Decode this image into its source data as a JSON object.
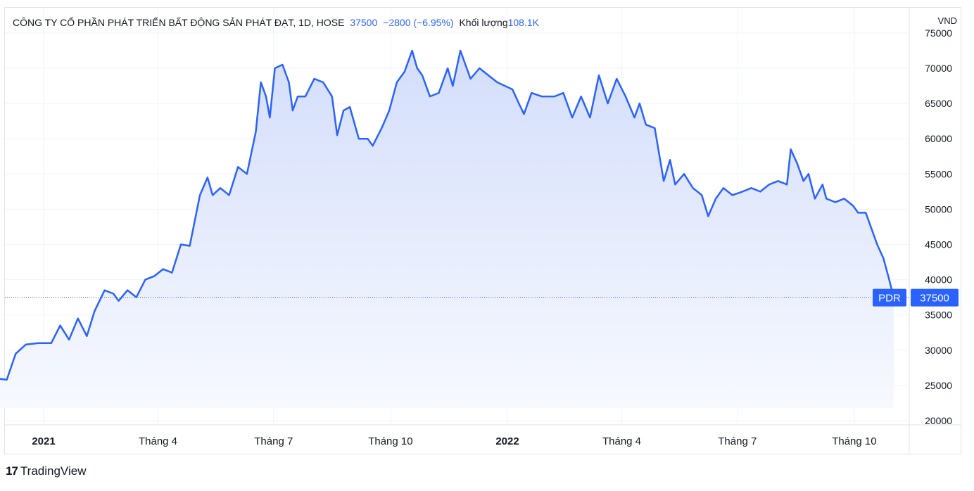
{
  "header": {
    "title": "CÔNG TY CỔ PHẦN PHÁT TRIỂN BẤT ĐỘNG SẢN PHÁT ĐẠT, 1D, HOSE",
    "last_price": "37500",
    "change": "−2800 (−6.95%)",
    "volume_label": "Khối lượng",
    "volume_value": "108.1K",
    "currency": "VND"
  },
  "brand": {
    "logo": "17",
    "name": "TradingView"
  },
  "colors": {
    "line": "#2962ff",
    "fill_top": "#d4defb",
    "fill_bottom": "#f7f9fe",
    "grid": "#f0f3fa",
    "label_bg": "#2962ff"
  },
  "chart_data": {
    "type": "area",
    "symbol": "PDR",
    "last_value": 37500,
    "last_value_label": "37500",
    "ylim": [
      20000,
      75000
    ],
    "y_ticks": [
      20000,
      25000,
      30000,
      35000,
      40000,
      45000,
      50000,
      55000,
      60000,
      65000,
      70000,
      75000
    ],
    "y_tick_labels": [
      "20000",
      "25000",
      "30000",
      "35000",
      "40000",
      "45000",
      "50000",
      "55000",
      "60000",
      "65000",
      "70000",
      "75000"
    ],
    "x_ticks": [
      {
        "label": "2021",
        "date": "2021-01-01",
        "bold": true
      },
      {
        "label": "Tháng 4",
        "date": "2021-04-01",
        "bold": false
      },
      {
        "label": "Tháng 7",
        "date": "2021-07-01",
        "bold": false
      },
      {
        "label": "Tháng 10",
        "date": "2021-10-01",
        "bold": false
      },
      {
        "label": "2022",
        "date": "2022-01-01",
        "bold": true
      },
      {
        "label": "Tháng 4",
        "date": "2022-04-01",
        "bold": false
      },
      {
        "label": "Tháng 7",
        "date": "2022-07-01",
        "bold": false
      },
      {
        "label": "Tháng 10",
        "date": "2022-10-01",
        "bold": false
      }
    ],
    "grid": true,
    "series": [
      {
        "points": [
          [
            "2020-11-25",
            26000
          ],
          [
            "2020-12-03",
            25800
          ],
          [
            "2020-12-10",
            29500
          ],
          [
            "2020-12-18",
            30800
          ],
          [
            "2020-12-28",
            31000
          ],
          [
            "2021-01-07",
            31000
          ],
          [
            "2021-01-14",
            33500
          ],
          [
            "2021-01-21",
            31500
          ],
          [
            "2021-01-28",
            34500
          ],
          [
            "2021-02-04",
            32000
          ],
          [
            "2021-02-10",
            35500
          ],
          [
            "2021-02-18",
            38500
          ],
          [
            "2021-02-25",
            38000
          ],
          [
            "2021-03-01",
            37000
          ],
          [
            "2021-03-08",
            38500
          ],
          [
            "2021-03-15",
            37500
          ],
          [
            "2021-03-22",
            40000
          ],
          [
            "2021-03-29",
            40500
          ],
          [
            "2021-04-05",
            41500
          ],
          [
            "2021-04-12",
            41000
          ],
          [
            "2021-04-19",
            45000
          ],
          [
            "2021-04-26",
            44800
          ],
          [
            "2021-05-04",
            52000
          ],
          [
            "2021-05-10",
            54500
          ],
          [
            "2021-05-14",
            52000
          ],
          [
            "2021-05-20",
            53000
          ],
          [
            "2021-05-27",
            52000
          ],
          [
            "2021-06-03",
            56000
          ],
          [
            "2021-06-10",
            55000
          ],
          [
            "2021-06-17",
            61000
          ],
          [
            "2021-06-21",
            68000
          ],
          [
            "2021-06-25",
            66000
          ],
          [
            "2021-06-28",
            63000
          ],
          [
            "2021-07-02",
            70000
          ],
          [
            "2021-07-08",
            70500
          ],
          [
            "2021-07-13",
            68000
          ],
          [
            "2021-07-16",
            64000
          ],
          [
            "2021-07-20",
            66000
          ],
          [
            "2021-07-26",
            66000
          ],
          [
            "2021-08-02",
            68500
          ],
          [
            "2021-08-09",
            68000
          ],
          [
            "2021-08-16",
            66000
          ],
          [
            "2021-08-20",
            60500
          ],
          [
            "2021-08-25",
            64000
          ],
          [
            "2021-08-30",
            64500
          ],
          [
            "2021-09-06",
            60000
          ],
          [
            "2021-09-13",
            60000
          ],
          [
            "2021-09-17",
            59000
          ],
          [
            "2021-09-24",
            61500
          ],
          [
            "2021-09-30",
            64000
          ],
          [
            "2021-10-06",
            68000
          ],
          [
            "2021-10-12",
            69500
          ],
          [
            "2021-10-18",
            72500
          ],
          [
            "2021-10-22",
            70000
          ],
          [
            "2021-10-26",
            69000
          ],
          [
            "2021-11-01",
            66000
          ],
          [
            "2021-11-08",
            66500
          ],
          [
            "2021-11-15",
            70000
          ],
          [
            "2021-11-19",
            67500
          ],
          [
            "2021-11-25",
            72500
          ],
          [
            "2021-12-03",
            68500
          ],
          [
            "2021-12-10",
            70000
          ],
          [
            "2021-12-17",
            69000
          ],
          [
            "2021-12-24",
            68000
          ],
          [
            "2022-01-05",
            67000
          ],
          [
            "2022-01-10",
            65000
          ],
          [
            "2022-01-14",
            63500
          ],
          [
            "2022-01-20",
            66500
          ],
          [
            "2022-01-28",
            66000
          ],
          [
            "2022-02-07",
            66000
          ],
          [
            "2022-02-14",
            66500
          ],
          [
            "2022-02-21",
            63000
          ],
          [
            "2022-02-28",
            66000
          ],
          [
            "2022-03-07",
            63000
          ],
          [
            "2022-03-14",
            69000
          ],
          [
            "2022-03-21",
            65000
          ],
          [
            "2022-03-28",
            68500
          ],
          [
            "2022-04-04",
            66000
          ],
          [
            "2022-04-11",
            63000
          ],
          [
            "2022-04-15",
            65000
          ],
          [
            "2022-04-20",
            62000
          ],
          [
            "2022-04-27",
            61500
          ],
          [
            "2022-05-04",
            54000
          ],
          [
            "2022-05-09",
            57000
          ],
          [
            "2022-05-13",
            53500
          ],
          [
            "2022-05-20",
            55000
          ],
          [
            "2022-05-27",
            53000
          ],
          [
            "2022-06-03",
            52000
          ],
          [
            "2022-06-08",
            49000
          ],
          [
            "2022-06-14",
            51500
          ],
          [
            "2022-06-20",
            53000
          ],
          [
            "2022-06-27",
            52000
          ],
          [
            "2022-07-05",
            52500
          ],
          [
            "2022-07-12",
            53000
          ],
          [
            "2022-07-19",
            52500
          ],
          [
            "2022-07-26",
            53500
          ],
          [
            "2022-08-02",
            54000
          ],
          [
            "2022-08-09",
            53500
          ],
          [
            "2022-08-12",
            58500
          ],
          [
            "2022-08-17",
            56500
          ],
          [
            "2022-08-22",
            54000
          ],
          [
            "2022-08-26",
            55000
          ],
          [
            "2022-08-31",
            51500
          ],
          [
            "2022-09-06",
            53500
          ],
          [
            "2022-09-09",
            51500
          ],
          [
            "2022-09-16",
            51000
          ],
          [
            "2022-09-23",
            51500
          ],
          [
            "2022-09-30",
            50500
          ],
          [
            "2022-10-04",
            49500
          ],
          [
            "2022-10-10",
            49500
          ],
          [
            "2022-10-14",
            47500
          ],
          [
            "2022-10-19",
            45000
          ],
          [
            "2022-10-24",
            43000
          ],
          [
            "2022-10-28",
            40300
          ],
          [
            "2022-11-01",
            37500
          ]
        ]
      }
    ]
  }
}
